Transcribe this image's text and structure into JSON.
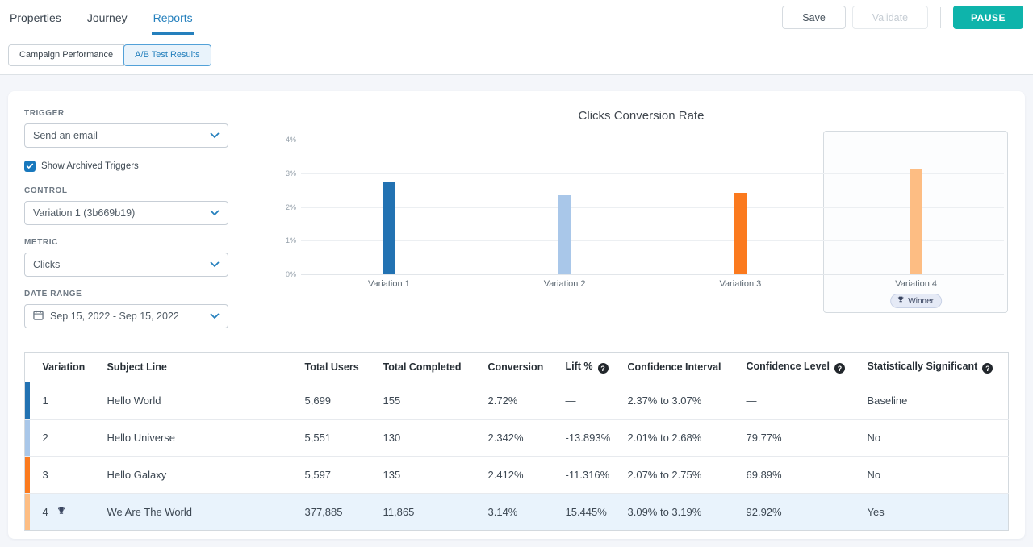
{
  "header": {
    "tabs": [
      {
        "label": "Properties",
        "active": false
      },
      {
        "label": "Journey",
        "active": false
      },
      {
        "label": "Reports",
        "active": true
      }
    ],
    "actions": {
      "save": "Save",
      "validate": "Validate",
      "pause": "PAUSE"
    }
  },
  "subnav": {
    "buttons": [
      {
        "label": "Campaign Performance",
        "active": false
      },
      {
        "label": "A/B Test Results",
        "active": true
      }
    ]
  },
  "filters": {
    "trigger": {
      "label": "TRIGGER",
      "value": "Send an email"
    },
    "show_archived": {
      "label": "Show Archived Triggers",
      "checked": true
    },
    "control": {
      "label": "CONTROL",
      "value": "Variation 1 (3b669b19)"
    },
    "metric": {
      "label": "METRIC",
      "value": "Clicks"
    },
    "date_range": {
      "label": "DATE RANGE",
      "value": "Sep 15, 2022 - Sep 15, 2022"
    }
  },
  "chart_data": {
    "type": "bar",
    "title": "Clicks Conversion Rate",
    "categories": [
      "Variation 1",
      "Variation 2",
      "Variation 3",
      "Variation 4"
    ],
    "values": [
      2.72,
      2.342,
      2.412,
      3.14
    ],
    "unit": "%",
    "ylim": [
      0,
      4
    ],
    "yticks": [
      "4%",
      "3%",
      "2%",
      "1%",
      "0%"
    ],
    "bar_colors": [
      "#2272b2",
      "#a9c7e9",
      "#fb7a1e",
      "#fdbd83"
    ],
    "grid": true,
    "winner_index": 3,
    "winner_label": "Winner"
  },
  "table": {
    "columns": [
      {
        "label": "Variation",
        "help": false
      },
      {
        "label": "Subject Line",
        "help": false
      },
      {
        "label": "Total Users",
        "help": false
      },
      {
        "label": "Total Completed",
        "help": false
      },
      {
        "label": "Conversion",
        "help": false
      },
      {
        "label": "Lift %",
        "help": true
      },
      {
        "label": "Confidence Interval",
        "help": false
      },
      {
        "label": "Confidence Level",
        "help": true
      },
      {
        "label": "Statistically Significant",
        "help": true
      }
    ],
    "rows": [
      {
        "variation": "1",
        "winner": false,
        "color": "#2272b2",
        "highlight": false,
        "subject": "Hello World",
        "total_users": "5,699",
        "total_completed": "155",
        "conversion": "2.72%",
        "lift": "—",
        "confidence_interval": "2.37% to 3.07%",
        "confidence_level": "—",
        "significant": "Baseline"
      },
      {
        "variation": "2",
        "winner": false,
        "color": "#a9c7e9",
        "highlight": false,
        "subject": "Hello Universe",
        "total_users": "5,551",
        "total_completed": "130",
        "conversion": "2.342%",
        "lift": "-13.893%",
        "confidence_interval": "2.01% to 2.68%",
        "confidence_level": "79.77%",
        "significant": "No"
      },
      {
        "variation": "3",
        "winner": false,
        "color": "#fb7a1e",
        "highlight": false,
        "subject": "Hello Galaxy",
        "total_users": "5,597",
        "total_completed": "135",
        "conversion": "2.412%",
        "lift": "-11.316%",
        "confidence_interval": "2.07% to 2.75%",
        "confidence_level": "69.89%",
        "significant": "No"
      },
      {
        "variation": "4",
        "winner": true,
        "color": "#fdbd83",
        "highlight": true,
        "subject": "We Are The World",
        "total_users": "377,885",
        "total_completed": "11,865",
        "conversion": "3.14%",
        "lift": "15.445%",
        "confidence_interval": "3.09% to 3.19%",
        "confidence_level": "92.92%",
        "significant": "Yes"
      }
    ]
  },
  "colors": {
    "accent_blue": "#2580bd",
    "pause_teal": "#0eb4ab",
    "checkbox_blue": "#1878bd",
    "highlight_row": "#e9f3fc",
    "winner_badge_bg": "#e5eaf6"
  },
  "icons": {
    "chevron_down": "chevron-down-icon",
    "calendar": "calendar-icon",
    "trophy": "trophy-icon",
    "help": "help-icon",
    "checkmark": "checkmark-icon"
  }
}
